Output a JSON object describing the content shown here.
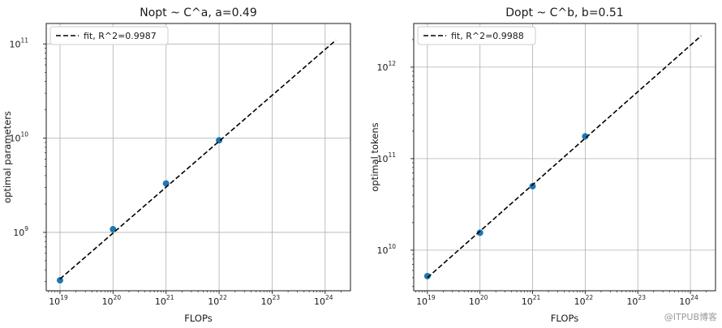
{
  "chart_data": [
    {
      "type": "scatter",
      "title": "Nopt ~ C^a, a=0.49",
      "xlabel": "FLOPs",
      "ylabel": "optimal parameters",
      "xscale": "log",
      "yscale": "log",
      "xlim": [
        5.5e+18,
        3e+24
      ],
      "ylim": [
        240000000.0,
        165000000000.0
      ],
      "xticks": [
        1e+19,
        1e+20,
        1e+21,
        1e+22,
        1e+23,
        1e+24
      ],
      "yticks": [
        1000000000.0,
        10000000000.0,
        100000000000.0
      ],
      "grid": true,
      "legend_position": "top-left",
      "series": [
        {
          "type": "scatter",
          "x": [
            1e+19,
            1e+20,
            1e+21,
            1e+22
          ],
          "y": [
            310000000.0,
            1080000000.0,
            3300000000.0,
            9500000000.0
          ],
          "color": "#1f77b4"
        },
        {
          "type": "line",
          "name": "fit, R^2=0.9987",
          "style": "dashed",
          "color": "#000000",
          "x": [
            1e+19,
            1.6e+24
          ],
          "y": [
            320000000.0,
            110000000000.0
          ]
        }
      ]
    },
    {
      "type": "scatter",
      "title": "Dopt ~ C^b, b=0.51",
      "xlabel": "FLOPs",
      "ylabel": "optimal tokens",
      "xscale": "log",
      "yscale": "log",
      "xlim": [
        5.5e+18,
        3e+24
      ],
      "ylim": [
        3600000000.0,
        3000000000000.0
      ],
      "xticks": [
        1e+19,
        1e+20,
        1e+21,
        1e+22,
        1e+23,
        1e+24
      ],
      "yticks": [
        10000000000.0,
        100000000000.0,
        1000000000000.0
      ],
      "grid": true,
      "legend_position": "top-left",
      "series": [
        {
          "type": "scatter",
          "x": [
            1e+19,
            1e+20,
            1e+21,
            1e+22
          ],
          "y": [
            5200000000.0,
            15500000000.0,
            50000000000.0,
            175000000000.0
          ],
          "color": "#1f77b4"
        },
        {
          "type": "line",
          "name": "fit, R^2=0.9988",
          "style": "dashed",
          "color": "#000000",
          "x": [
            1e+19,
            1.6e+24
          ],
          "y": [
            5000000000.0,
            2200000000000.0
          ]
        }
      ]
    }
  ],
  "watermark": "@ITPUB博客"
}
